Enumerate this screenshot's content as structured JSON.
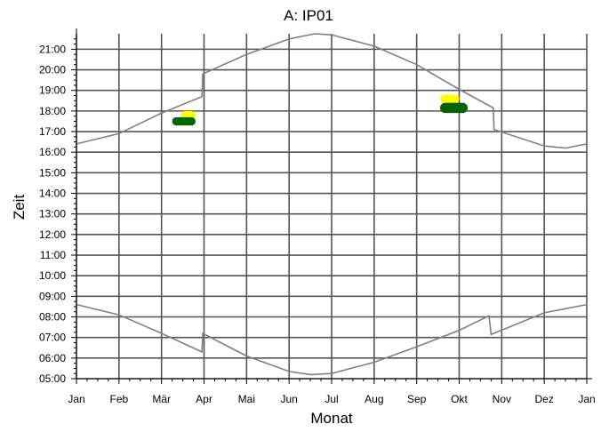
{
  "chart_data": {
    "type": "line",
    "title": "A: IP01",
    "xlabel": "Monat",
    "ylabel": "Zeit",
    "x_ticks": [
      "Jan",
      "Feb",
      "Mär",
      "Apr",
      "Mai",
      "Jun",
      "Jul",
      "Aug",
      "Sep",
      "Okt",
      "Nov",
      "Dez",
      "Jan"
    ],
    "y_ticks": [
      "05:00",
      "06:00",
      "07:00",
      "08:00",
      "09:00",
      "10:00",
      "11:00",
      "12:00",
      "13:00",
      "14:00",
      "15:00",
      "16:00",
      "17:00",
      "18:00",
      "19:00",
      "20:00",
      "21:00"
    ],
    "xlim": [
      0,
      12
    ],
    "ylim": [
      5.0,
      21.75
    ],
    "grid": true,
    "series": [
      {
        "color": "#808080",
        "points": [
          [
            0,
            16.4
          ],
          [
            1,
            16.9
          ],
          [
            2,
            17.9
          ],
          [
            2.95,
            18.7
          ],
          [
            2.97,
            19.8
          ],
          [
            4,
            20.75
          ],
          [
            5,
            21.5
          ],
          [
            5.6,
            21.75
          ],
          [
            6,
            21.7
          ],
          [
            7,
            21.15
          ],
          [
            8,
            20.25
          ],
          [
            9,
            19.05
          ],
          [
            9.8,
            18.15
          ],
          [
            9.82,
            17.1
          ],
          [
            11,
            16.3
          ],
          [
            11.5,
            16.2
          ],
          [
            12,
            16.4
          ]
        ]
      },
      {
        "color": "#808080",
        "points": [
          [
            0,
            8.6
          ],
          [
            1,
            8.1
          ],
          [
            2,
            7.2
          ],
          [
            2.95,
            6.3
          ],
          [
            2.97,
            7.2
          ],
          [
            4,
            6.1
          ],
          [
            5,
            5.35
          ],
          [
            5.5,
            5.2
          ],
          [
            6,
            5.25
          ],
          [
            7,
            5.8
          ],
          [
            8,
            6.55
          ],
          [
            9,
            7.35
          ],
          [
            9.7,
            8.05
          ],
          [
            9.75,
            7.15
          ],
          [
            11,
            8.2
          ],
          [
            12,
            8.6
          ]
        ]
      }
    ],
    "markers": [
      {
        "color": "#ffff00",
        "x": [
          2.45,
          2.8
        ],
        "y": [
          17.6,
          18.0
        ]
      },
      {
        "color": "#006400",
        "x": [
          2.25,
          2.8
        ],
        "y": [
          17.3,
          17.7
        ]
      },
      {
        "color": "#ffff00",
        "x": [
          8.55,
          9.0
        ],
        "y": [
          18.4,
          18.8
        ]
      },
      {
        "color": "#006400",
        "x": [
          8.55,
          9.2
        ],
        "y": [
          17.9,
          18.4
        ]
      }
    ]
  }
}
